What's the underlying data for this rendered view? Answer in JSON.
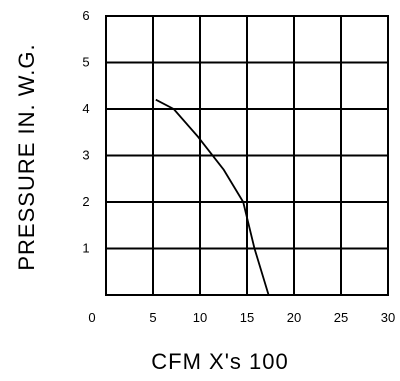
{
  "chart_data": {
    "type": "line",
    "title": "",
    "xlabel": "CFM X's 100",
    "ylabel": "PRESSURE IN. W.G.",
    "xlim": [
      0,
      30
    ],
    "ylim": [
      0,
      6
    ],
    "x_ticks": [
      0,
      5,
      10,
      15,
      20,
      25,
      30
    ],
    "x_tick_labels": [
      "0",
      "5",
      "10",
      "15",
      "20",
      "25",
      "30"
    ],
    "y_ticks": [
      1,
      2,
      3,
      4,
      5,
      6
    ],
    "y_tick_labels": [
      "1",
      "2",
      "3",
      "4",
      "5",
      "6"
    ],
    "grid": true,
    "legend": "none",
    "series": [
      {
        "x": [
          5.3,
          7.2,
          9.8,
          12.5,
          14.6,
          15.8,
          17.3
        ],
        "y": [
          4.2,
          4.0,
          3.4,
          2.7,
          2.0,
          1.0,
          0.0
        ]
      }
    ],
    "colors": {
      "line": "#000000",
      "grid": "#000000",
      "background": "#ffffff"
    }
  }
}
